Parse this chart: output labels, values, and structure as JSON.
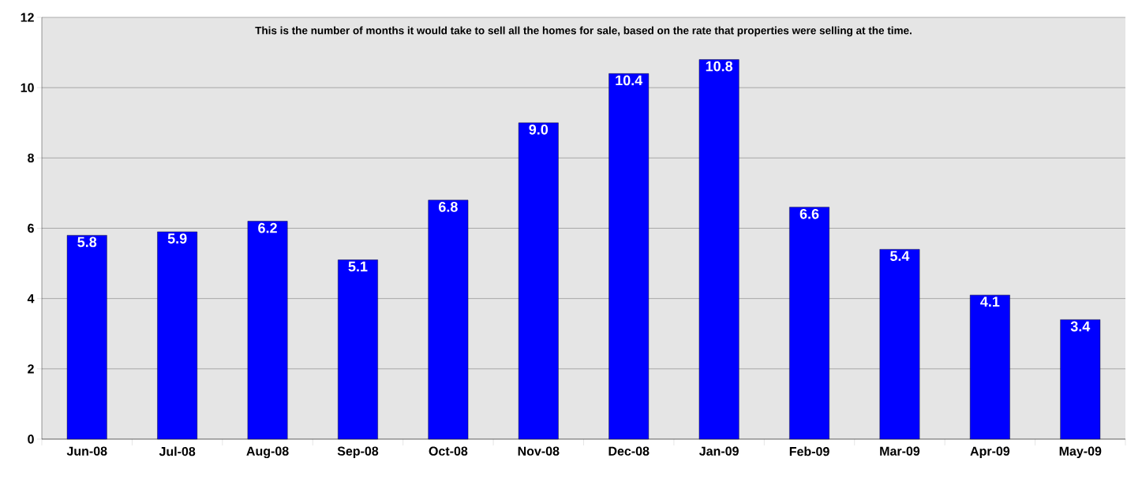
{
  "chart_data": {
    "type": "bar",
    "annotations": [
      "This is the number of months it would take to sell all the homes for sale, based on the rate that properties were selling at the time."
    ],
    "categories": [
      "Jun-08",
      "Jul-08",
      "Aug-08",
      "Sep-08",
      "Oct-08",
      "Nov-08",
      "Dec-08",
      "Jan-09",
      "Feb-09",
      "Mar-09",
      "Apr-09",
      "May-09"
    ],
    "values": [
      5.8,
      5.9,
      6.2,
      5.1,
      6.8,
      9.0,
      10.4,
      10.8,
      6.6,
      5.4,
      4.1,
      3.4
    ],
    "value_labels": [
      "5.8",
      "5.9",
      "6.2",
      "5.1",
      "6.8",
      "9.0",
      "10.4",
      "10.8",
      "6.6",
      "5.4",
      "4.1",
      "3.4"
    ],
    "color": "#0000ff",
    "ylim": [
      0,
      12
    ],
    "yticks": [
      0,
      2,
      4,
      6,
      8,
      10,
      12
    ],
    "grid": "y"
  }
}
